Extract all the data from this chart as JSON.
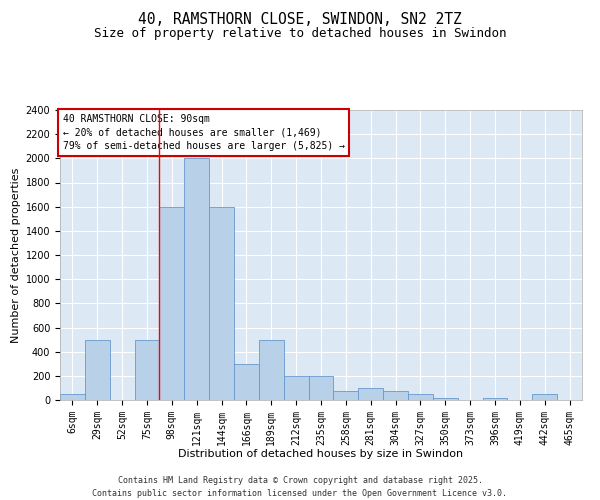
{
  "title": "40, RAMSTHORN CLOSE, SWINDON, SN2 2TZ",
  "subtitle": "Size of property relative to detached houses in Swindon",
  "xlabel": "Distribution of detached houses by size in Swindon",
  "ylabel": "Number of detached properties",
  "categories": [
    "6sqm",
    "29sqm",
    "52sqm",
    "75sqm",
    "98sqm",
    "121sqm",
    "144sqm",
    "166sqm",
    "189sqm",
    "212sqm",
    "235sqm",
    "258sqm",
    "281sqm",
    "304sqm",
    "327sqm",
    "350sqm",
    "373sqm",
    "396sqm",
    "419sqm",
    "442sqm",
    "465sqm"
  ],
  "values": [
    50,
    500,
    0,
    500,
    1600,
    2000,
    1600,
    300,
    500,
    200,
    200,
    75,
    100,
    75,
    50,
    20,
    0,
    20,
    0,
    50,
    0
  ],
  "bar_color": "#b8d0e8",
  "bar_edge_color": "#6699cc",
  "background_color": "#dce9f5",
  "ylim": [
    0,
    2400
  ],
  "yticks": [
    0,
    200,
    400,
    600,
    800,
    1000,
    1200,
    1400,
    1600,
    1800,
    2000,
    2200,
    2400
  ],
  "red_line_index": 4,
  "annotation_box_text": "40 RAMSTHORN CLOSE: 90sqm\n← 20% of detached houses are smaller (1,469)\n79% of semi-detached houses are larger (5,825) →",
  "annotation_box_color": "#cc0000",
  "footer": "Contains HM Land Registry data © Crown copyright and database right 2025.\nContains public sector information licensed under the Open Government Licence v3.0.",
  "title_fontsize": 10.5,
  "subtitle_fontsize": 9,
  "xlabel_fontsize": 8,
  "ylabel_fontsize": 8,
  "tick_fontsize": 7,
  "footer_fontsize": 6,
  "annotation_fontsize": 7
}
